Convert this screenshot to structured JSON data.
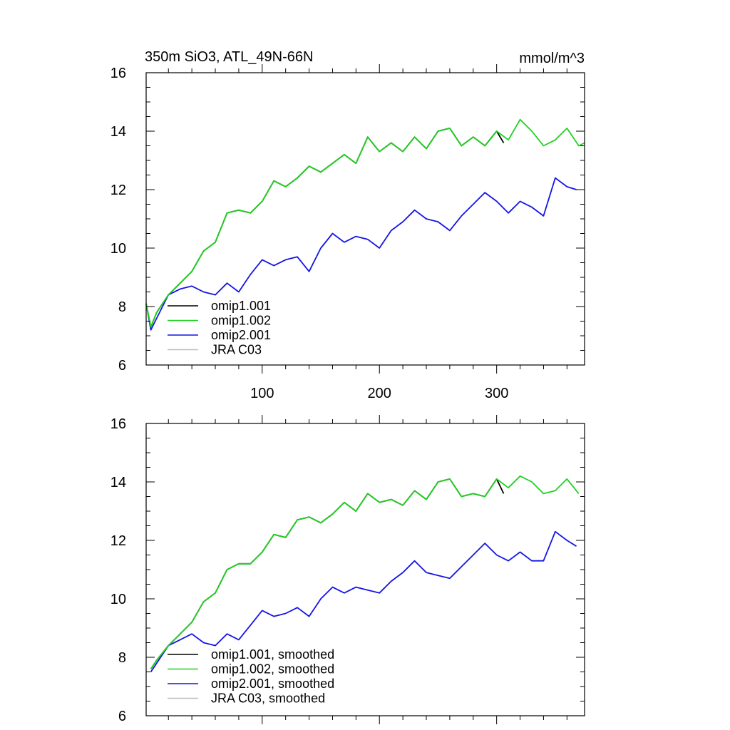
{
  "chart_data": [
    {
      "type": "line",
      "title": "350m SiO3, ATL_49N-66N",
      "units": "mmol/m^3",
      "xlim": [
        1,
        375
      ],
      "ylim": [
        6,
        16
      ],
      "yticks": [
        6,
        8,
        10,
        12,
        14,
        16
      ],
      "xticks": [
        100,
        200,
        300
      ],
      "x_ticklabels": [
        "100",
        "200",
        "300"
      ],
      "legend_location": "lower-left",
      "series": [
        {
          "name": "omip1.001",
          "color": "#000000",
          "x": [
            1,
            5,
            10,
            20,
            30,
            40,
            50,
            60,
            70,
            80,
            90,
            100,
            110,
            120,
            130,
            140,
            150,
            160,
            170,
            180,
            190,
            200,
            210,
            220,
            230,
            240,
            250,
            260,
            270,
            280,
            290,
            300,
            306
          ],
          "values": [
            8.1,
            7.3,
            7.8,
            8.4,
            8.8,
            9.2,
            9.9,
            10.2,
            11.2,
            11.3,
            11.2,
            11.6,
            12.3,
            12.1,
            12.4,
            12.8,
            12.6,
            12.9,
            13.2,
            12.9,
            13.8,
            13.3,
            13.6,
            13.3,
            13.8,
            13.4,
            14.0,
            14.1,
            13.5,
            13.8,
            13.5,
            14.0,
            13.6
          ]
        },
        {
          "name": "omip1.002",
          "color": "#1fd21f",
          "x": [
            1,
            5,
            10,
            20,
            30,
            40,
            50,
            60,
            70,
            80,
            90,
            100,
            110,
            120,
            130,
            140,
            150,
            160,
            170,
            180,
            190,
            200,
            210,
            220,
            230,
            240,
            250,
            260,
            270,
            280,
            290,
            300,
            310,
            320,
            330,
            340,
            350,
            360,
            370,
            375
          ],
          "values": [
            8.1,
            7.3,
            7.8,
            8.4,
            8.8,
            9.2,
            9.9,
            10.2,
            11.2,
            11.3,
            11.2,
            11.6,
            12.3,
            12.1,
            12.4,
            12.8,
            12.6,
            12.9,
            13.2,
            12.9,
            13.8,
            13.3,
            13.6,
            13.3,
            13.8,
            13.4,
            14.0,
            14.1,
            13.5,
            13.8,
            13.5,
            14.0,
            13.7,
            14.4,
            14.0,
            13.5,
            13.7,
            14.1,
            13.5,
            13.6
          ]
        },
        {
          "name": "omip2.001",
          "color": "#1414e6",
          "x": [
            1,
            5,
            10,
            20,
            30,
            40,
            50,
            60,
            70,
            80,
            90,
            100,
            110,
            120,
            130,
            140,
            150,
            160,
            170,
            180,
            190,
            200,
            210,
            220,
            230,
            240,
            250,
            260,
            270,
            280,
            290,
            300,
            310,
            320,
            330,
            340,
            350,
            360,
            368
          ],
          "values": [
            8.1,
            7.2,
            7.6,
            8.4,
            8.6,
            8.7,
            8.5,
            8.4,
            8.8,
            8.5,
            9.1,
            9.6,
            9.4,
            9.6,
            9.7,
            9.2,
            10.0,
            10.5,
            10.2,
            10.4,
            10.3,
            10.0,
            10.6,
            10.9,
            11.3,
            11.0,
            10.9,
            10.6,
            11.1,
            11.5,
            11.9,
            11.6,
            11.2,
            11.6,
            11.4,
            11.1,
            12.4,
            12.1,
            12.0
          ]
        },
        {
          "name": "JRA C03",
          "color": "#bdbdbd",
          "x": [],
          "values": []
        }
      ]
    },
    {
      "type": "line",
      "title": "",
      "xlim": [
        1,
        375
      ],
      "ylim": [
        6,
        16
      ],
      "yticks": [
        6,
        8,
        10,
        12,
        14,
        16
      ],
      "legend_location": "lower-left",
      "series": [
        {
          "name": "omip1.001, smoothed",
          "color": "#000000",
          "x": [
            5,
            10,
            20,
            30,
            40,
            50,
            60,
            70,
            80,
            90,
            100,
            110,
            120,
            130,
            140,
            150,
            160,
            170,
            180,
            190,
            200,
            210,
            220,
            230,
            240,
            250,
            260,
            270,
            280,
            290,
            300,
            306
          ],
          "values": [
            7.6,
            7.9,
            8.4,
            8.8,
            9.2,
            9.9,
            10.2,
            11.0,
            11.2,
            11.2,
            11.6,
            12.2,
            12.1,
            12.7,
            12.8,
            12.6,
            12.9,
            13.3,
            13.0,
            13.6,
            13.3,
            13.4,
            13.2,
            13.7,
            13.4,
            14.0,
            14.1,
            13.5,
            13.6,
            13.5,
            14.1,
            13.6
          ]
        },
        {
          "name": "omip1.002, smoothed",
          "color": "#1fd21f",
          "x": [
            5,
            10,
            20,
            30,
            40,
            50,
            60,
            70,
            80,
            90,
            100,
            110,
            120,
            130,
            140,
            150,
            160,
            170,
            180,
            190,
            200,
            210,
            220,
            230,
            240,
            250,
            260,
            270,
            280,
            290,
            300,
            310,
            320,
            330,
            340,
            350,
            360,
            370
          ],
          "values": [
            7.6,
            7.9,
            8.4,
            8.8,
            9.2,
            9.9,
            10.2,
            11.0,
            11.2,
            11.2,
            11.6,
            12.2,
            12.1,
            12.7,
            12.8,
            12.6,
            12.9,
            13.3,
            13.0,
            13.6,
            13.3,
            13.4,
            13.2,
            13.7,
            13.4,
            14.0,
            14.1,
            13.5,
            13.6,
            13.5,
            14.1,
            13.8,
            14.2,
            14.0,
            13.6,
            13.7,
            14.1,
            13.6
          ]
        },
        {
          "name": "omip2.001, smoothed",
          "color": "#1414e6",
          "x": [
            5,
            10,
            20,
            30,
            40,
            50,
            60,
            70,
            80,
            90,
            100,
            110,
            120,
            130,
            140,
            150,
            160,
            170,
            180,
            190,
            200,
            210,
            220,
            230,
            240,
            250,
            260,
            270,
            280,
            290,
            300,
            310,
            320,
            330,
            340,
            350,
            360,
            368
          ],
          "values": [
            7.5,
            7.8,
            8.4,
            8.6,
            8.8,
            8.5,
            8.4,
            8.8,
            8.6,
            9.1,
            9.6,
            9.4,
            9.5,
            9.7,
            9.4,
            10.0,
            10.4,
            10.2,
            10.4,
            10.3,
            10.2,
            10.6,
            10.9,
            11.3,
            10.9,
            10.8,
            10.7,
            11.1,
            11.5,
            11.9,
            11.5,
            11.3,
            11.6,
            11.3,
            11.3,
            12.3,
            12.0,
            11.8
          ]
        },
        {
          "name": "JRA C03, smoothed",
          "color": "#bdbdbd",
          "x": [],
          "values": []
        }
      ]
    }
  ]
}
